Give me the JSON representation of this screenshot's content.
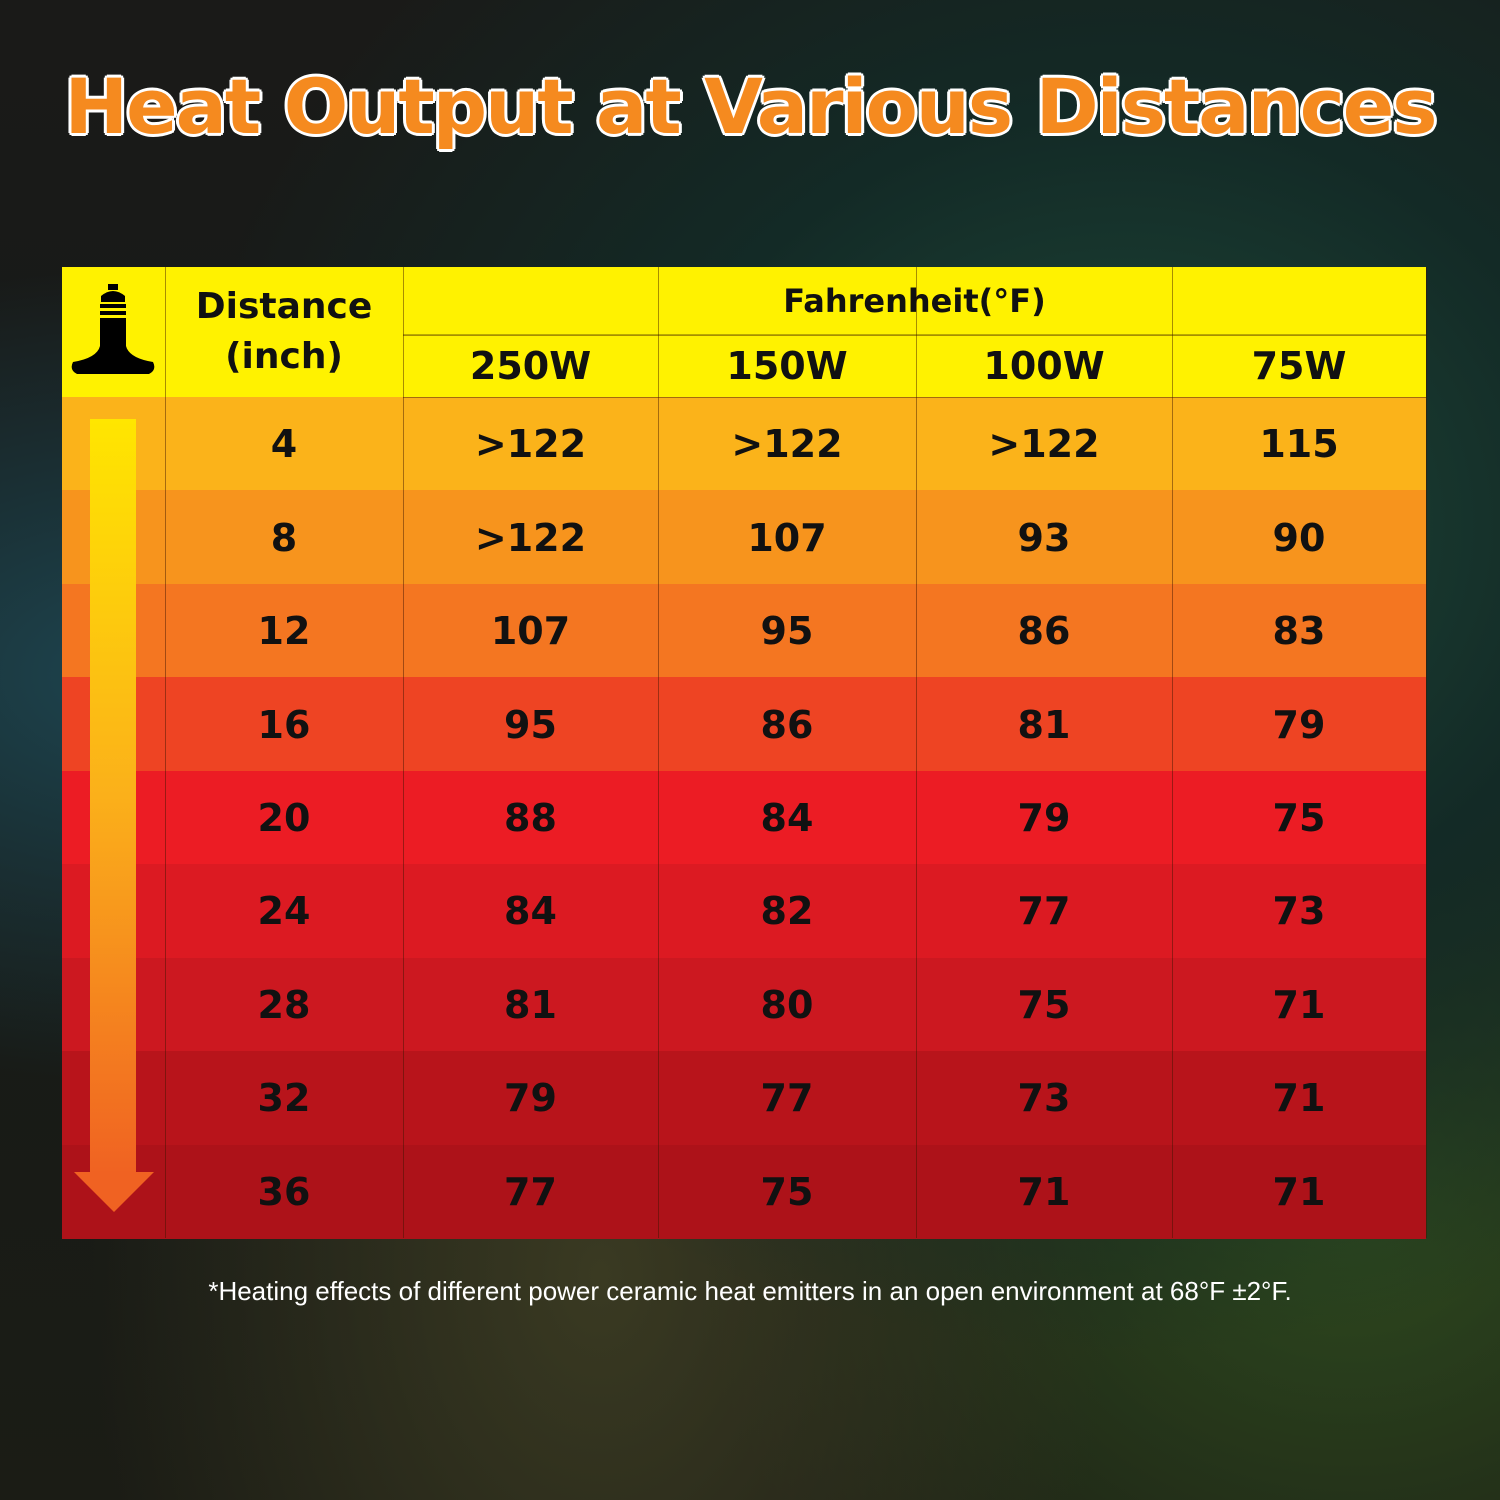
{
  "title": "Heat Output at Various Distances",
  "table": {
    "distance_header": "Distance (inch)",
    "unit_header": "Fahrenheit(°F)",
    "columns": [
      "250W",
      "150W",
      "100W",
      "75W"
    ],
    "rows": [
      [
        "4",
        ">122",
        ">122",
        ">122",
        "115"
      ],
      [
        "8",
        ">122",
        "107",
        "93",
        "90"
      ],
      [
        "12",
        "107",
        "95",
        "86",
        "83"
      ],
      [
        "16",
        "95",
        "86",
        "81",
        "79"
      ],
      [
        "20",
        "88",
        "84",
        "79",
        "75"
      ],
      [
        "24",
        "84",
        "82",
        "77",
        "73"
      ],
      [
        "28",
        "81",
        "80",
        "75",
        "71"
      ],
      [
        "32",
        "79",
        "77",
        "73",
        "71"
      ],
      [
        "36",
        "77",
        "75",
        "71",
        "71"
      ]
    ]
  },
  "footnote": "*Heating effects of different power ceramic heat emitters in an open environment at 68°F ±2°F."
}
